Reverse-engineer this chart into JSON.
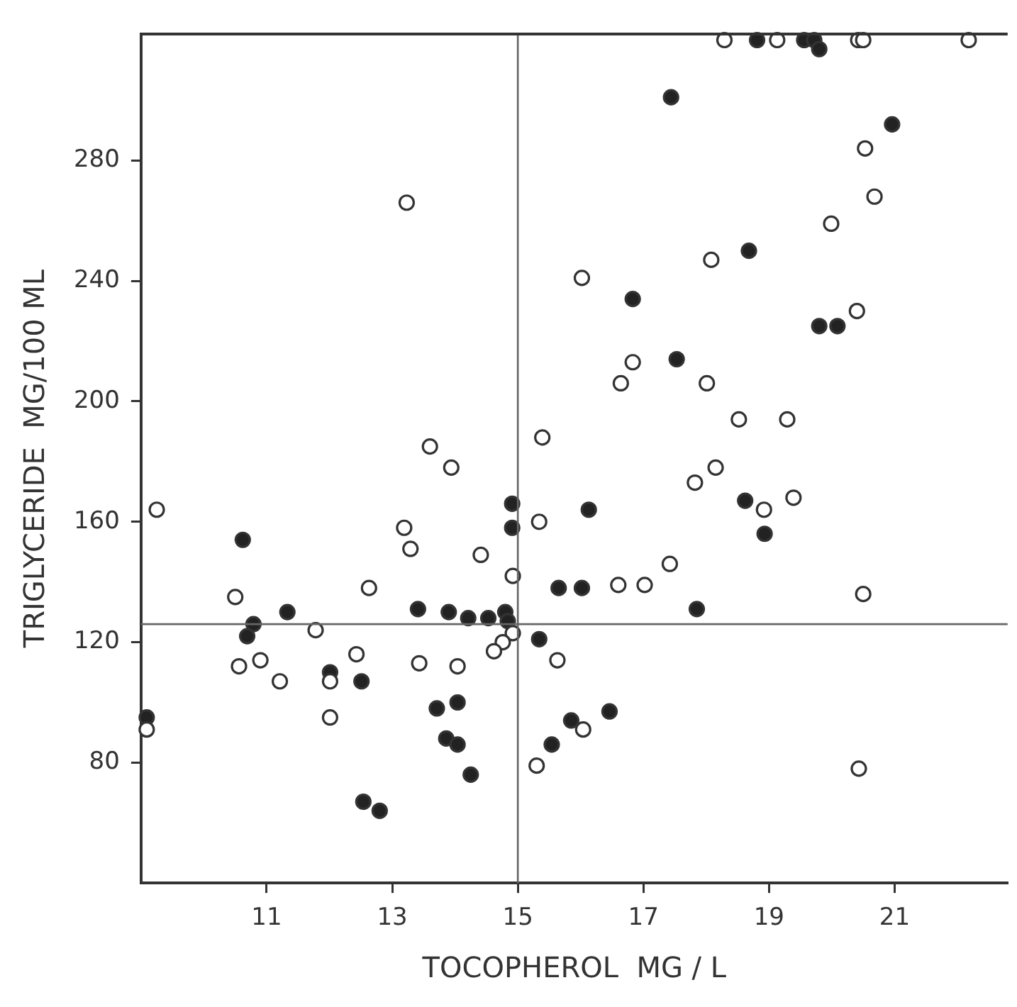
{
  "chart_data": {
    "type": "scatter",
    "xlabel": "TOCOPHEROL  MG / L",
    "ylabel": "TRIGLYCERIDE  MG/100 ML",
    "xlim": [
      9,
      22.8
    ],
    "xticks": [
      11,
      13,
      15,
      17,
      19,
      21
    ],
    "ylim": [
      40,
      322
    ],
    "yticks": [
      80,
      120,
      160,
      200,
      240,
      280
    ],
    "grid": false,
    "legend": false,
    "marker": "circle",
    "ref_lines": [
      {
        "axis": "x",
        "value": 15
      },
      {
        "axis": "y",
        "value": 126
      }
    ],
    "series": [
      {
        "color": "#222222",
        "x": [
          14.91,
          14.91,
          10.62,
          15.65,
          13.41,
          13.9,
          11.33,
          14.21,
          14.53,
          14.8,
          14.84,
          10.79,
          10.69,
          15.34,
          12.01,
          12.51,
          13.71,
          14.04,
          13.86,
          14.04,
          14.25,
          9.09,
          12.54,
          12.8,
          15.54,
          15.85,
          16.46,
          18.81,
          19.56,
          19.72,
          19.8,
          17.44,
          20.96,
          18.68,
          16.83,
          19.8,
          20.09,
          17.53,
          18.62,
          18.93,
          16.13,
          16.02,
          17.85
        ],
        "values": [
          166,
          158,
          154,
          138,
          131,
          130,
          130,
          128,
          128,
          130,
          127,
          126,
          122,
          121,
          110,
          107,
          98,
          100,
          88,
          86,
          76,
          95,
          67,
          64,
          86,
          94,
          97,
          320,
          320,
          320,
          317,
          301,
          292,
          250,
          234,
          225,
          225,
          214,
          167,
          156,
          164,
          138,
          131
        ]
      },
      {
        "color": "#ffffff",
        "x": [
          13.23,
          13.6,
          15.39,
          13.94,
          9.25,
          15.34,
          13.19,
          13.29,
          14.41,
          14.92,
          10.5,
          12.63,
          11.78,
          14.92,
          14.76,
          14.62,
          10.9,
          10.56,
          12.43,
          13.43,
          14.04,
          15.63,
          11.21,
          12.01,
          12.01,
          9.09,
          15.3,
          16.04,
          18.29,
          19.13,
          20.42,
          20.5,
          22.18,
          20.53,
          20.68,
          19.99,
          18.08,
          16.02,
          20.4,
          16.83,
          16.64,
          18.01,
          18.52,
          19.29,
          18.15,
          17.82,
          18.92,
          19.39,
          17.42,
          16.6,
          17.02,
          20.5,
          20.43
        ],
        "values": [
          266,
          185,
          188,
          178,
          164,
          160,
          158,
          151,
          149,
          142,
          135,
          138,
          124,
          123,
          120,
          117,
          114,
          112,
          116,
          113,
          112,
          114,
          107,
          107,
          95,
          91,
          79,
          91,
          320,
          320,
          320,
          320,
          320,
          284,
          268,
          259,
          247,
          241,
          230,
          213,
          206,
          206,
          194,
          194,
          178,
          173,
          164,
          168,
          146,
          139,
          139,
          136,
          78
        ]
      }
    ]
  }
}
